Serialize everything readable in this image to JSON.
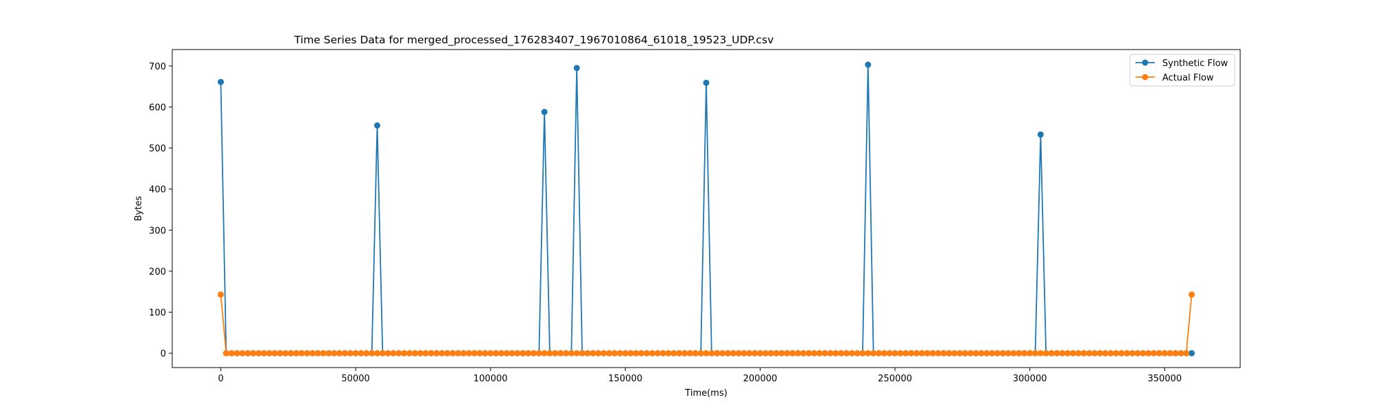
{
  "chart_data": {
    "type": "line",
    "title": "Time Series Data for merged_processed_176283407_1967010864_61018_19523_UDP.csv",
    "xlabel": "Time(ms)",
    "ylabel": "Bytes",
    "xlim": [
      -18000,
      378000
    ],
    "ylim": [
      -35,
      740
    ],
    "xticks": [
      0,
      50000,
      100000,
      150000,
      200000,
      250000,
      300000,
      350000
    ],
    "yticks": [
      0,
      100,
      200,
      300,
      400,
      500,
      600,
      700
    ],
    "grid": false,
    "legend_position": "upper right",
    "sample_interval_ms": 2000,
    "x_range": [
      0,
      360000
    ],
    "series": [
      {
        "name": "Synthetic Flow",
        "color": "#1f77b4",
        "marker": "circle",
        "default_value": 0,
        "points": [
          {
            "x": 0,
            "y": 661
          },
          {
            "x": 2000,
            "y": 0
          },
          {
            "x": 56000,
            "y": 0
          },
          {
            "x": 58000,
            "y": 555
          },
          {
            "x": 60000,
            "y": 0
          },
          {
            "x": 118000,
            "y": 0
          },
          {
            "x": 120000,
            "y": 588
          },
          {
            "x": 122000,
            "y": 0
          },
          {
            "x": 130000,
            "y": 0
          },
          {
            "x": 132000,
            "y": 695
          },
          {
            "x": 134000,
            "y": 0
          },
          {
            "x": 178000,
            "y": 0
          },
          {
            "x": 180000,
            "y": 659
          },
          {
            "x": 182000,
            "y": 0
          },
          {
            "x": 238000,
            "y": 0
          },
          {
            "x": 240000,
            "y": 703
          },
          {
            "x": 242000,
            "y": 0
          },
          {
            "x": 302000,
            "y": 0
          },
          {
            "x": 304000,
            "y": 533
          },
          {
            "x": 306000,
            "y": 0
          },
          {
            "x": 360000,
            "y": 0
          }
        ],
        "spikes": [
          {
            "x": 0,
            "y": 661
          },
          {
            "x": 58000,
            "y": 555
          },
          {
            "x": 120000,
            "y": 588
          },
          {
            "x": 132000,
            "y": 695
          },
          {
            "x": 180000,
            "y": 659
          },
          {
            "x": 240000,
            "y": 703
          },
          {
            "x": 304000,
            "y": 533
          }
        ]
      },
      {
        "name": "Actual Flow",
        "color": "#ff7f0e",
        "marker": "circle",
        "default_value": 0,
        "spikes": [
          {
            "x": 0,
            "y": 143
          },
          {
            "x": 360000,
            "y": 143
          }
        ]
      }
    ]
  }
}
